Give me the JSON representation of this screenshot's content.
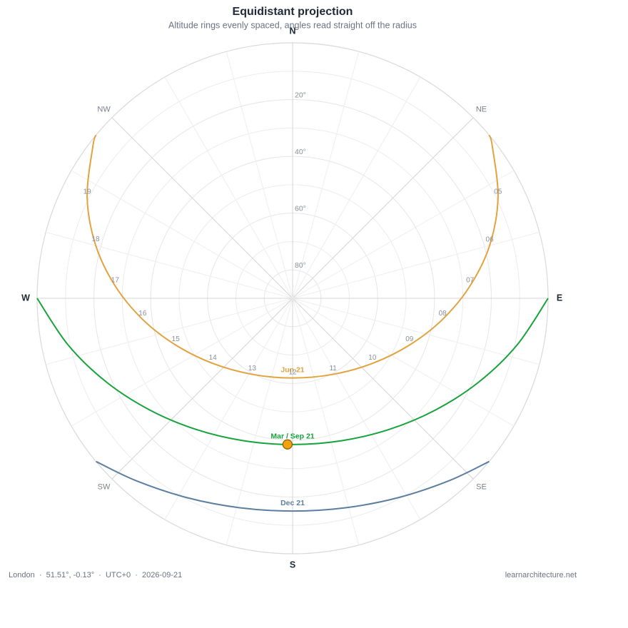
{
  "chart_data": {
    "type": "sunpath",
    "title": "Equidistant projection",
    "subtitle": "Altitude rings evenly spaced, angles read straight off the radius",
    "compass": [
      "N",
      "NE",
      "E",
      "SE",
      "S",
      "SW",
      "W",
      "NW"
    ],
    "rlim": [
      90,
      0
    ],
    "rticks": [
      {
        "value": 20,
        "label": "20°"
      },
      {
        "value": 40,
        "label": "40°"
      },
      {
        "value": 60,
        "label": "60°"
      },
      {
        "value": 80,
        "label": "80°"
      }
    ],
    "grid_rings": [
      10,
      30,
      50,
      70
    ],
    "azimuth_grid": [
      0,
      15,
      30,
      45,
      60,
      75,
      90,
      105,
      120,
      135,
      150,
      165,
      180,
      195,
      210,
      225,
      240,
      255,
      270,
      285,
      300,
      315,
      330,
      345
    ],
    "series": [
      {
        "name": "Jun 21",
        "color": "#e1a33f",
        "azimuth": [
          50.3,
          52.6,
          63.9,
          75.0,
          86.0,
          98.0,
          111.8,
          129.2,
          152.0,
          180,
          208.0,
          230.8,
          248.2,
          262.0,
          274.0,
          285.1,
          296.1,
          307.4,
          309.7
        ],
        "altitude": [
          0,
          1.48,
          9.42,
          18.14,
          27.34,
          36.65,
          45.66,
          53.71,
          59.66,
          61.93,
          59.66,
          53.71,
          45.66,
          36.65,
          27.34,
          18.14,
          9.42,
          1.48,
          0
        ],
        "labels": [
          null,
          null,
          "05",
          "06",
          "07",
          "08",
          "09",
          "10",
          "11",
          "12",
          "13",
          "14",
          "15",
          "16",
          "17",
          "18",
          "19",
          null,
          null
        ]
      },
      {
        "name": "Mar / Sep 21",
        "color": "#17a33b",
        "azimuth": [
          90,
          101.8,
          114.3,
          128.0,
          143.6,
          161.1,
          180,
          198.9,
          216.4,
          232.0,
          245.7,
          258.2,
          270
        ],
        "altitude": [
          0,
          9.27,
          18.13,
          26.11,
          32.62,
          36.95,
          38.49,
          36.95,
          32.62,
          26.11,
          18.13,
          9.27,
          0
        ]
      },
      {
        "name": "Dec 21",
        "color": "#5b7fa0",
        "azimuth": [
          129.7,
          139.3,
          152.2,
          165.8,
          180,
          194.2,
          207.8,
          220.7,
          230.3
        ],
        "altitude": [
          0,
          5.3,
          10.56,
          13.9,
          15.05,
          13.9,
          10.56,
          5.3,
          0
        ]
      }
    ],
    "sun": {
      "azimuth": 182,
      "altitude": 38.5
    },
    "footer_left": "London  ·  51.51°, -0.13°  ·  UTC+0  ·  2026-09-21",
    "footer_right": "learnarchitecture.net"
  }
}
